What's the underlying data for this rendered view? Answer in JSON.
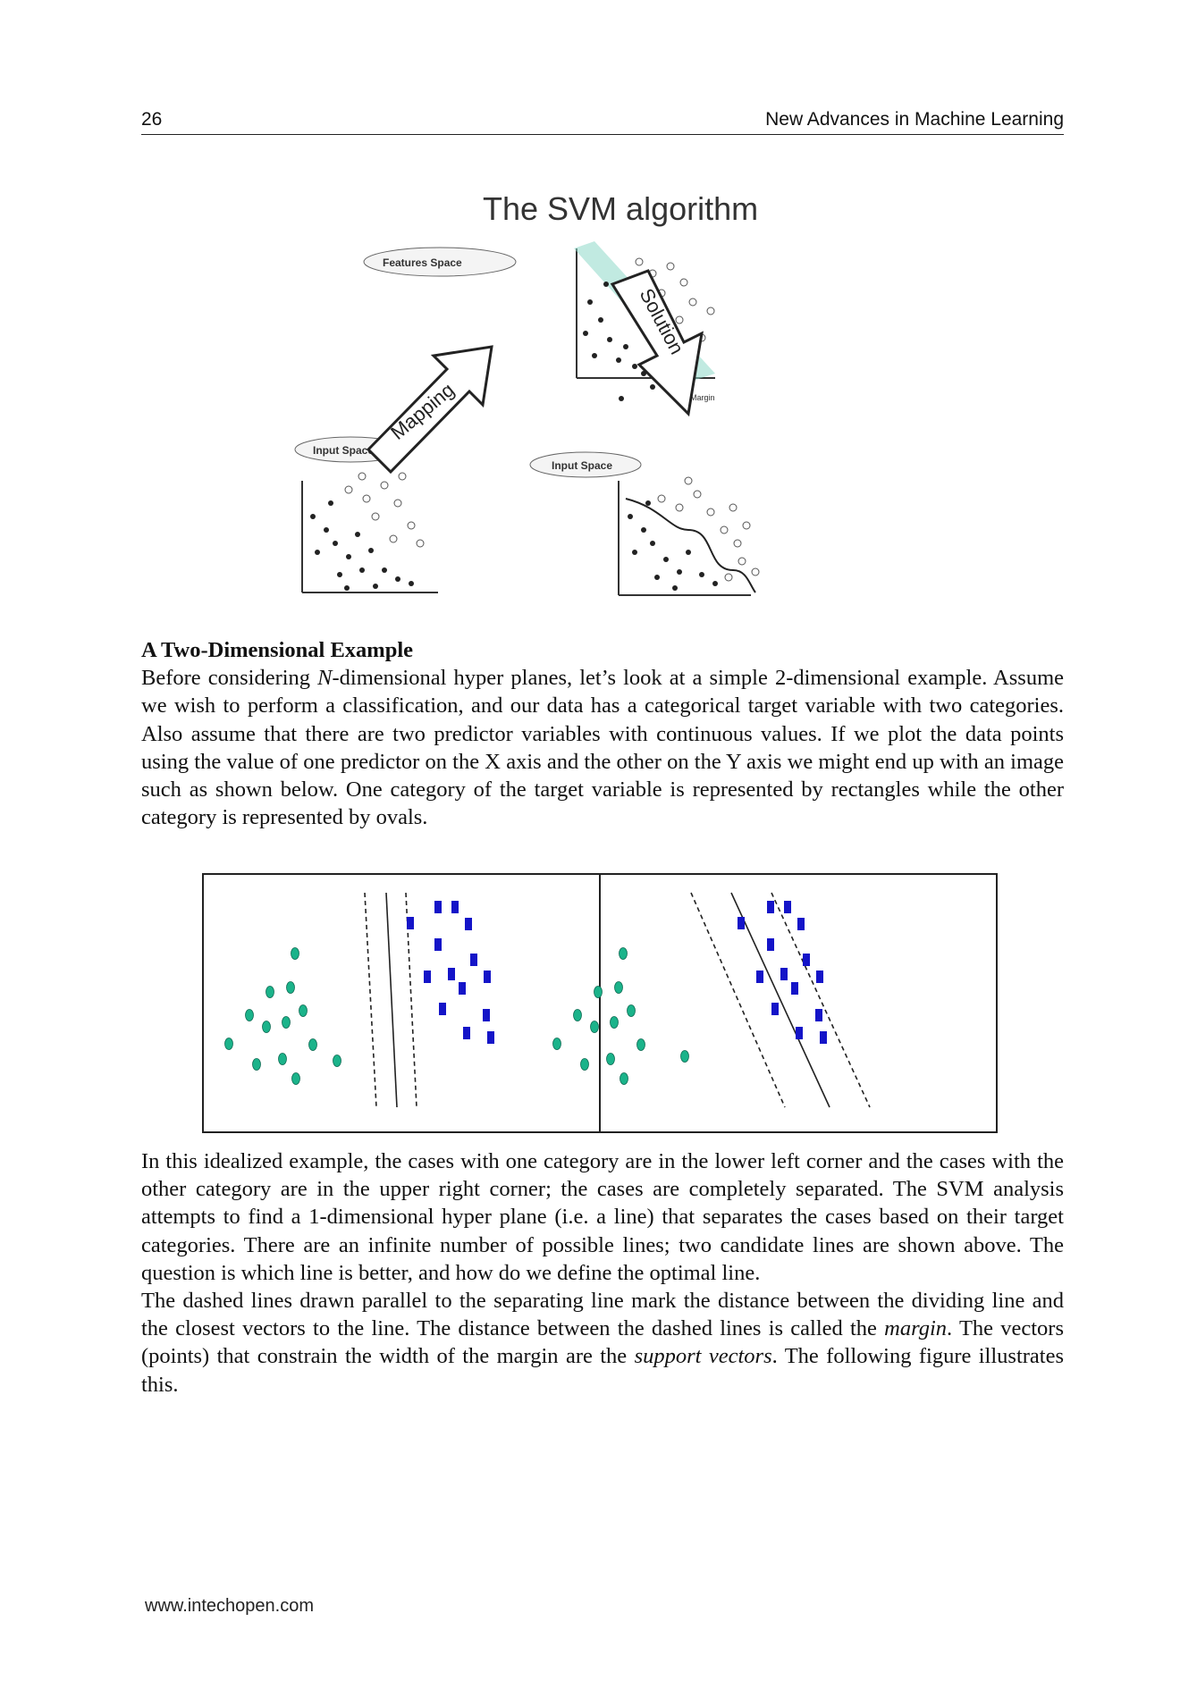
{
  "header": {
    "page_number": "26",
    "running_title": "New Advances in Machine Learning"
  },
  "figure1": {
    "title": "The SVM algorithm",
    "labels": {
      "features_space": "Features Space",
      "input_space_left": "Input Space",
      "input_space_right": "Input Space",
      "mapping": "Mapping",
      "solution": "Solution",
      "margin": "Margin"
    }
  },
  "section": {
    "heading": "A Two-Dimensional Example",
    "p1_a": "Before considering ",
    "p1_n": "N",
    "p1_b": "-dimensional hyper planes, let’s look at a simple 2-dimensional example. Assume we wish to perform a classification, and our data has a categorical target variable with two categories. Also assume that there are two predictor variables with continuous values. If we plot the data points using the value of one predictor on the X axis and the other on the Y axis we might end up with an image such as shown below. One category of the target variable is represented by rectangles while the other category is represented by ovals.",
    "p2": "In this idealized example, the cases with one category are in the lower left corner and the cases with the other category are in the upper right corner; the cases are completely separated. The SVM analysis attempts to find a 1-dimensional hyper plane (i.e. a line) that separates the cases based on their target categories. There are an infinite number of possible lines; two candidate lines are shown above. The question is which line is better, and how do we define the optimal line.",
    "p3_a": "The dashed lines drawn parallel to the separating line mark the distance between the dividing line and the closest vectors to the line. The distance between the dashed lines is called the ",
    "p3_margin": "margin",
    "p3_b": ". The vectors (points) that constrain the width of the margin are the ",
    "p3_sv1": "support",
    "p3_sv2": "vectors",
    "p3_c": ". The following figure illustrates this."
  },
  "colors": {
    "oval": "#1bb38a",
    "rect": "#1414c8"
  },
  "footer": {
    "url": "www.intechopen.com"
  }
}
